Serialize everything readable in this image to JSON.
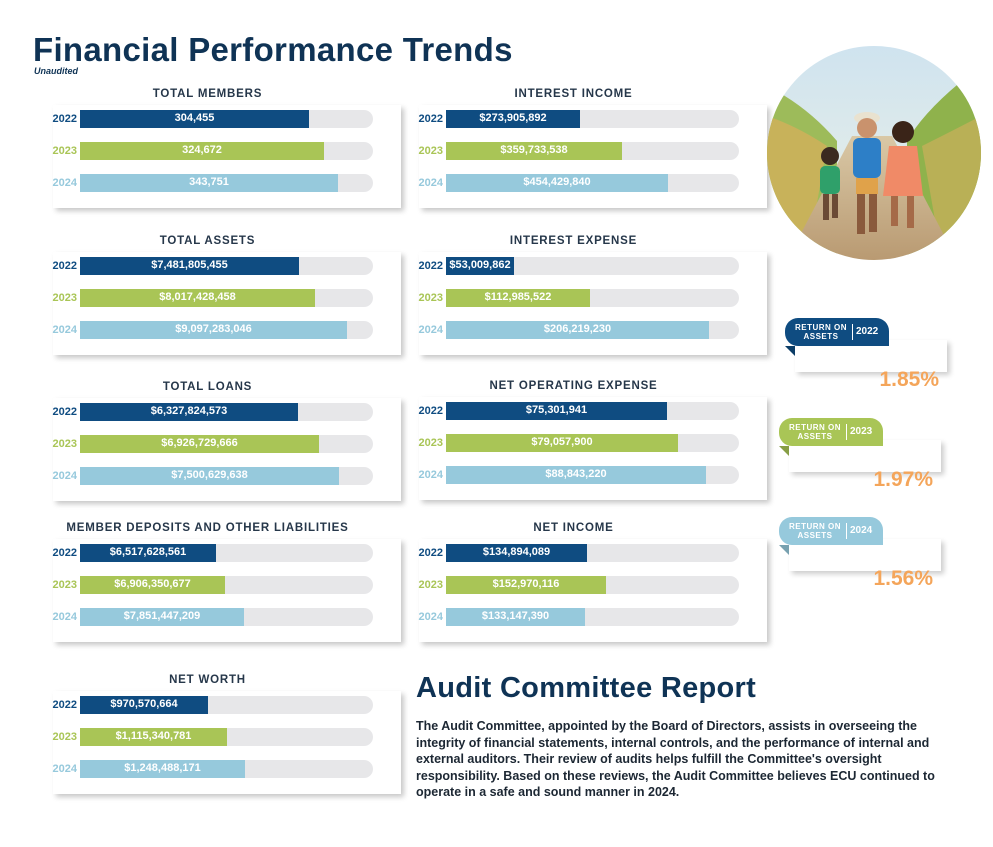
{
  "header": {
    "title": "Financial Performance Trends",
    "subtitle": "Unaudited"
  },
  "colors": {
    "2022": "#0f4c81",
    "2023": "#a9c556",
    "2024": "#96c9dc",
    "track": "#e7e7e9",
    "roa_value": "#f4a55a",
    "title": "#0f3355"
  },
  "chart_data": [
    {
      "type": "bar",
      "title": "TOTAL MEMBERS",
      "categories": [
        "2022",
        "2023",
        "2024"
      ],
      "values": [
        304455,
        324672,
        343751
      ],
      "labels": [
        "304,455",
        "324,672",
        "343,751"
      ],
      "ylim": [
        0,
        390000
      ]
    },
    {
      "type": "bar",
      "title": "INTEREST INCOME",
      "categories": [
        "2022",
        "2023",
        "2024"
      ],
      "values": [
        273905892,
        359733538,
        454429840
      ],
      "labels": [
        "$273,905,892",
        "$359,733,538",
        "$454,429,840"
      ],
      "ylim": [
        0,
        600000000
      ]
    },
    {
      "type": "bar",
      "title": "TOTAL ASSETS",
      "categories": [
        "2022",
        "2023",
        "2024"
      ],
      "values": [
        7481805455,
        8017428458,
        9097283046
      ],
      "labels": [
        "$7,481,805,455",
        "$8,017,428,458",
        "$9,097,283,046"
      ],
      "ylim": [
        0,
        10000000000
      ]
    },
    {
      "type": "bar",
      "title": "INTEREST EXPENSE",
      "categories": [
        "2022",
        "2023",
        "2024"
      ],
      "values": [
        53009862,
        112985522,
        206219230
      ],
      "labels": [
        "$53,009,862",
        "$112,985,522",
        "$206,219,230"
      ],
      "ylim": [
        0,
        230000000
      ]
    },
    {
      "type": "bar",
      "title": "TOTAL LOANS",
      "categories": [
        "2022",
        "2023",
        "2024"
      ],
      "values": [
        6327824573,
        6926729666,
        7500629638
      ],
      "labels": [
        "$6,327,824,573",
        "$6,926,729,666",
        "$7,500,629,638"
      ],
      "ylim": [
        0,
        8500000000
      ]
    },
    {
      "type": "bar",
      "title": "NET OPERATING EXPENSE",
      "categories": [
        "2022",
        "2023",
        "2024"
      ],
      "values": [
        75301941,
        79057900,
        88843220
      ],
      "labels": [
        "$75,301,941",
        "$79,057,900",
        "$88,843,220"
      ],
      "ylim": [
        0,
        100000000
      ]
    },
    {
      "type": "bar",
      "title": "MEMBER DEPOSITS AND OTHER LIABILITIES",
      "categories": [
        "2022",
        "2023",
        "2024"
      ],
      "values": [
        6517628561,
        6906350677,
        7851447209
      ],
      "labels": [
        "$6,517,628,561",
        "$6,906,350,677",
        "$7,851,447,209"
      ],
      "ylim": [
        0,
        14000000000
      ]
    },
    {
      "type": "bar",
      "title": "NET INCOME",
      "categories": [
        "2022",
        "2023",
        "2024"
      ],
      "values": [
        134894089,
        152970116,
        133147390
      ],
      "labels": [
        "$134,894,089",
        "$152,970,116",
        "$133,147,390"
      ],
      "ylim": [
        0,
        280000000
      ]
    },
    {
      "type": "bar",
      "title": "NET WORTH",
      "categories": [
        "2022",
        "2023",
        "2024"
      ],
      "values": [
        970570664,
        1115340781,
        1248488171
      ],
      "labels": [
        "$970,570,664",
        "$1,115,340,781",
        "$1,248,488,171"
      ],
      "ylim": [
        0,
        2220000000
      ]
    }
  ],
  "roa": [
    {
      "label": "RETURN ON ASSETS",
      "year": "2022",
      "value": "1.85%",
      "color": "#0f4c81"
    },
    {
      "label": "RETURN ON ASSETS",
      "year": "2023",
      "value": "1.97%",
      "color": "#a9c556"
    },
    {
      "label": "RETURN ON ASSETS",
      "year": "2024",
      "value": "1.56%",
      "color": "#96c9dc"
    }
  ],
  "audit": {
    "title": "Audit Committee Report",
    "body": "The Audit Committee, appointed by the Board of Directors, assists in overseeing the integrity of financial statements, internal controls, and the performance of internal and external auditors. Their review of audits helps fulfill the Committee's oversight responsibility. Based on these reviews, the Audit Committee believes ECU continued to operate in a safe and sound manner in 2024."
  }
}
